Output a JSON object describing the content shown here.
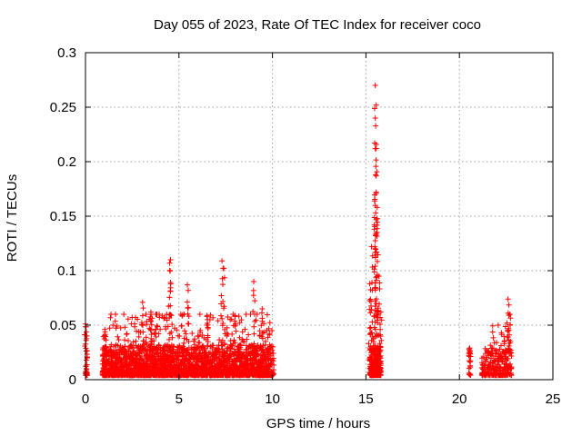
{
  "chart_data": {
    "type": "scatter",
    "title": "Day 055 of 2023, Rate Of TEC Index for receiver coco",
    "xlabel": "GPS time / hours",
    "ylabel": "ROTI / TECUs",
    "xlim": [
      0,
      25
    ],
    "ylim": [
      0,
      0.3
    ],
    "xticks": [
      0,
      5,
      10,
      15,
      20,
      25
    ],
    "xtick_labels": [
      "0",
      "5",
      "10",
      "15",
      "20",
      "25"
    ],
    "yticks": [
      0,
      0.05,
      0.1,
      0.15,
      0.2,
      0.25,
      0.3
    ],
    "ytick_labels": [
      "0",
      "0.05",
      "0.1",
      "0.15",
      "0.2",
      "0.25",
      "0.3"
    ],
    "grid": true,
    "marker": "+",
    "color": "#ff0000",
    "clusters": [
      {
        "x_range": [
          0.0,
          0.1
        ],
        "count": 30,
        "y_base": 0.015,
        "y_max": 0.05
      },
      {
        "x_range": [
          0.9,
          10.1
        ],
        "count": 2600,
        "y_base": 0.018,
        "y_max": 0.06
      },
      {
        "x_range": [
          15.2,
          15.8
        ],
        "count": 260,
        "y_base": 0.018,
        "y_max": 0.07
      },
      {
        "x_range": [
          20.5,
          20.6
        ],
        "count": 15,
        "y_base": 0.012,
        "y_max": 0.03
      },
      {
        "x_range": [
          21.2,
          22.8
        ],
        "count": 260,
        "y_base": 0.015,
        "y_max": 0.05
      }
    ],
    "peaks": [
      {
        "x": 0.0,
        "y": 0.051
      },
      {
        "x": 1.05,
        "y": 0.044
      },
      {
        "x": 3.05,
        "y": 0.071
      },
      {
        "x": 3.5,
        "y": 0.062
      },
      {
        "x": 4.5,
        "y": 0.107
      },
      {
        "x": 4.55,
        "y": 0.11
      },
      {
        "x": 5.45,
        "y": 0.087
      },
      {
        "x": 6.5,
        "y": 0.058
      },
      {
        "x": 7.3,
        "y": 0.109
      },
      {
        "x": 7.4,
        "y": 0.102
      },
      {
        "x": 8.0,
        "y": 0.058
      },
      {
        "x": 9.0,
        "y": 0.09
      },
      {
        "x": 9.45,
        "y": 0.065
      },
      {
        "x": 15.2,
        "y": 0.088
      },
      {
        "x": 15.3,
        "y": 0.122
      },
      {
        "x": 15.5,
        "y": 0.27
      },
      {
        "x": 15.55,
        "y": 0.252
      },
      {
        "x": 15.5,
        "y": 0.24
      },
      {
        "x": 15.5,
        "y": 0.212
      },
      {
        "x": 15.55,
        "y": 0.187
      },
      {
        "x": 15.55,
        "y": 0.172
      },
      {
        "x": 15.6,
        "y": 0.158
      },
      {
        "x": 15.45,
        "y": 0.142
      },
      {
        "x": 15.7,
        "y": 0.095
      },
      {
        "x": 15.8,
        "y": 0.062
      },
      {
        "x": 20.55,
        "y": 0.029
      },
      {
        "x": 22.6,
        "y": 0.074
      },
      {
        "x": 22.7,
        "y": 0.06
      }
    ]
  }
}
